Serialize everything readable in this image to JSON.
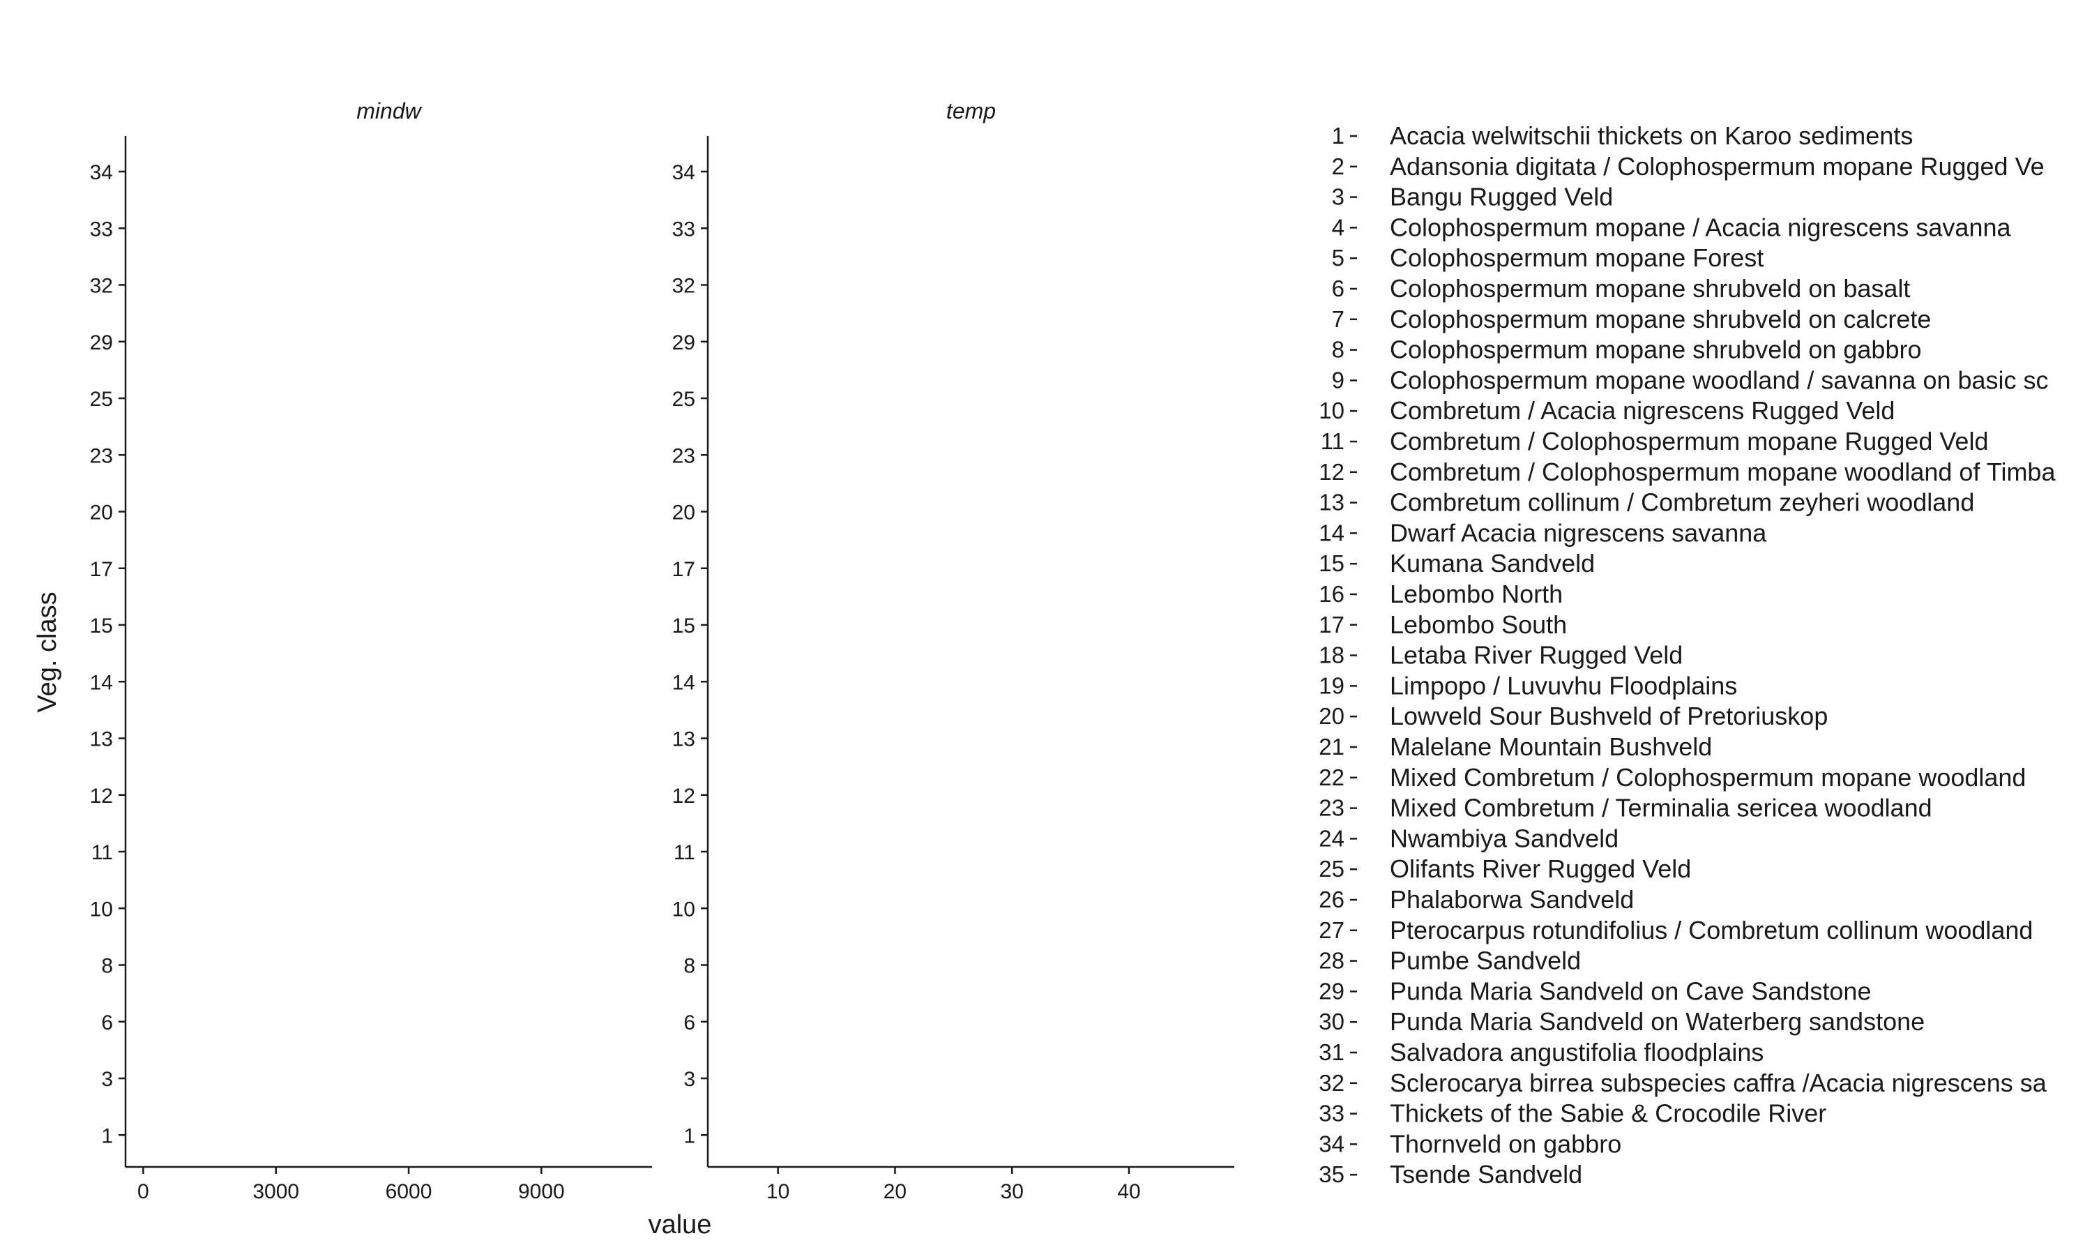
{
  "chart_data": {
    "type": "scatter",
    "title": "",
    "xlabel": "value",
    "ylabel": "Veg. class",
    "grid": false,
    "y_ticks": [
      "1",
      "3",
      "6",
      "8",
      "10",
      "11",
      "12",
      "13",
      "14",
      "15",
      "17",
      "20",
      "23",
      "25",
      "29",
      "32",
      "33",
      "34"
    ],
    "facets": [
      {
        "name": "mindw",
        "xlim": [
          -400,
          11500
        ],
        "x_ticks": [
          0,
          3000,
          6000,
          9000
        ],
        "points": []
      },
      {
        "name": "temp",
        "xlim": [
          4,
          49
        ],
        "x_ticks": [
          10,
          20,
          30,
          40
        ],
        "points": []
      }
    ],
    "legend": {
      "placement": "right",
      "items": [
        {
          "num": "1",
          "label": "Acacia welwitschii thickets on Karoo sediments"
        },
        {
          "num": "2",
          "label": "Adansonia digitata / Colophospermum mopane Rugged Ve"
        },
        {
          "num": "3",
          "label": "Bangu Rugged Veld"
        },
        {
          "num": "4",
          "label": "Colophospermum mopane / Acacia nigrescens savanna"
        },
        {
          "num": "5",
          "label": "Colophospermum mopane Forest"
        },
        {
          "num": "6",
          "label": "Colophospermum mopane shrubveld on basalt"
        },
        {
          "num": "7",
          "label": "Colophospermum mopane shrubveld on calcrete"
        },
        {
          "num": "8",
          "label": "Colophospermum mopane shrubveld on gabbro"
        },
        {
          "num": "9",
          "label": "Colophospermum mopane woodland / savanna on basic sc"
        },
        {
          "num": "10",
          "label": "Combretum / Acacia nigrescens Rugged Veld"
        },
        {
          "num": "11",
          "label": "Combretum / Colophospermum mopane Rugged Veld"
        },
        {
          "num": "12",
          "label": "Combretum / Colophospermum mopane woodland of Timba"
        },
        {
          "num": "13",
          "label": "Combretum collinum / Combretum zeyheri woodland"
        },
        {
          "num": "14",
          "label": "Dwarf Acacia nigrescens savanna"
        },
        {
          "num": "15",
          "label": "Kumana Sandveld"
        },
        {
          "num": "16",
          "label": "Lebombo North"
        },
        {
          "num": "17",
          "label": "Lebombo South"
        },
        {
          "num": "18",
          "label": "Letaba River Rugged Veld"
        },
        {
          "num": "19",
          "label": "Limpopo / Luvuvhu Floodplains"
        },
        {
          "num": "20",
          "label": "Lowveld Sour Bushveld of Pretoriuskop"
        },
        {
          "num": "21",
          "label": "Malelane Mountain Bushveld"
        },
        {
          "num": "22",
          "label": "Mixed Combretum / Colophospermum mopane woodland"
        },
        {
          "num": "23",
          "label": "Mixed Combretum / Terminalia sericea woodland"
        },
        {
          "num": "24",
          "label": "Nwambiya Sandveld"
        },
        {
          "num": "25",
          "label": "Olifants River Rugged Veld"
        },
        {
          "num": "26",
          "label": "Phalaborwa Sandveld"
        },
        {
          "num": "27",
          "label": "Pterocarpus rotundifolius / Combretum collinum woodland"
        },
        {
          "num": "28",
          "label": "Pumbe Sandveld"
        },
        {
          "num": "29",
          "label": "Punda Maria Sandveld on Cave Sandstone"
        },
        {
          "num": "30",
          "label": "Punda Maria Sandveld on Waterberg sandstone"
        },
        {
          "num": "31",
          "label": "Salvadora angustifolia floodplains"
        },
        {
          "num": "32",
          "label": "Sclerocarya birrea subspecies caffra /Acacia nigrescens sa"
        },
        {
          "num": "33",
          "label": "Thickets of the Sabie & Crocodile River"
        },
        {
          "num": "34",
          "label": "Thornveld on gabbro"
        },
        {
          "num": "35",
          "label": "Tsende Sandveld"
        }
      ]
    }
  }
}
